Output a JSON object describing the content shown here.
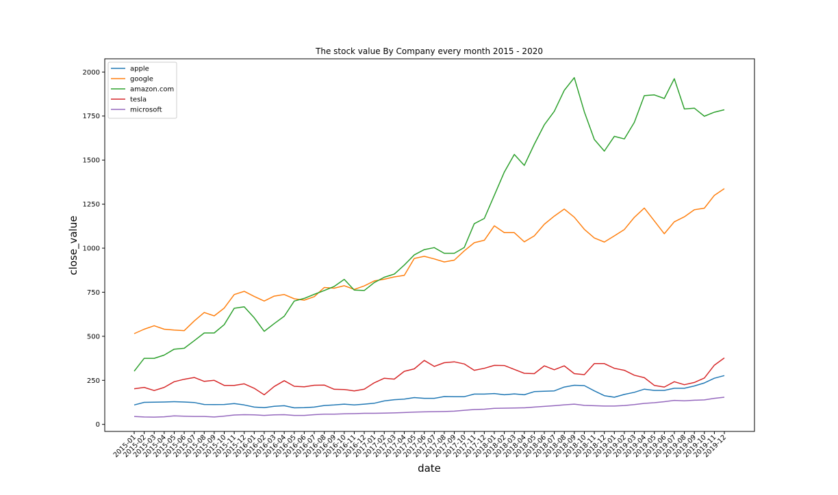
{
  "chart_data": {
    "type": "line",
    "title": "The stock value By Company every month 2015 - 2020",
    "xlabel": "date",
    "ylabel": "close_value",
    "ylim": [
      -40,
      2075
    ],
    "yticks": [
      0,
      250,
      500,
      750,
      1000,
      1250,
      1500,
      1750,
      2000
    ],
    "grid": false,
    "legend_position": "top-left",
    "categories": [
      "2015-01",
      "2015-02",
      "2015-03",
      "2015-04",
      "2015-05",
      "2015-06",
      "2015-07",
      "2015-08",
      "2015-09",
      "2015-10",
      "2015-11",
      "2015-12",
      "2016-01",
      "2016-02",
      "2016-03",
      "2016-04",
      "2016-05",
      "2016-06",
      "2016-07",
      "2016-08",
      "2016-09",
      "2016-10",
      "2016-11",
      "2016-12",
      "2017-01",
      "2017-02",
      "2017-03",
      "2017-04",
      "2017-05",
      "2017-06",
      "2017-07",
      "2017-08",
      "2017-09",
      "2017-10",
      "2017-11",
      "2017-12",
      "2018-01",
      "2018-02",
      "2018-03",
      "2018-04",
      "2018-05",
      "2018-06",
      "2018-07",
      "2018-08",
      "2018-09",
      "2018-10",
      "2018-11",
      "2018-12",
      "2019-01",
      "2019-02",
      "2019-03",
      "2019-04",
      "2019-05",
      "2019-06",
      "2019-07",
      "2019-08",
      "2019-09",
      "2019-10",
      "2019-11",
      "2019-12"
    ],
    "series": [
      {
        "name": "apple",
        "color": "#1f77b4",
        "values": [
          110,
          125,
          126,
          127,
          129,
          127,
          124,
          113,
          112,
          113,
          118,
          110,
          98,
          95,
          103,
          106,
          94,
          95,
          98,
          107,
          110,
          115,
          110,
          115,
          120,
          133,
          140,
          143,
          152,
          148,
          148,
          158,
          157,
          157,
          172,
          172,
          175,
          168,
          173,
          168,
          186,
          188,
          190,
          212,
          222,
          220,
          190,
          163,
          154,
          170,
          182,
          200,
          193,
          193,
          205,
          205,
          218,
          235,
          262,
          277
        ]
      },
      {
        "name": "google",
        "color": "#ff7f0e",
        "values": [
          515,
          540,
          560,
          540,
          535,
          532,
          587,
          635,
          616,
          660,
          737,
          755,
          726,
          700,
          728,
          737,
          713,
          705,
          725,
          777,
          773,
          787,
          766,
          786,
          814,
          824,
          837,
          846,
          942,
          954,
          939,
          922,
          932,
          985,
          1031,
          1045,
          1127,
          1088,
          1088,
          1036,
          1070,
          1136,
          1182,
          1222,
          1176,
          1107,
          1058,
          1035,
          1070,
          1106,
          1175,
          1228,
          1155,
          1082,
          1150,
          1178,
          1218,
          1227,
          1300,
          1338
        ]
      },
      {
        "name": "amazon.com",
        "color": "#2ca02c",
        "values": [
          302,
          375,
          375,
          393,
          427,
          432,
          475,
          519,
          519,
          566,
          659,
          667,
          605,
          528,
          572,
          614,
          700,
          715,
          738,
          760,
          783,
          823,
          762,
          760,
          805,
          835,
          853,
          904,
          962,
          992,
          1003,
          971,
          971,
          1004,
          1139,
          1169,
          1300,
          1432,
          1532,
          1470,
          1590,
          1700,
          1777,
          1896,
          1968,
          1774,
          1617,
          1551,
          1635,
          1620,
          1714,
          1866,
          1870,
          1850,
          1962,
          1790,
          1795,
          1749,
          1772,
          1786
        ]
      },
      {
        "name": "tesla",
        "color": "#d62728",
        "values": [
          202,
          210,
          192,
          210,
          242,
          256,
          266,
          244,
          250,
          221,
          221,
          230,
          205,
          168,
          215,
          248,
          216,
          213,
          222,
          223,
          199,
          198,
          190,
          200,
          236,
          262,
          257,
          301,
          315,
          363,
          329,
          350,
          355,
          343,
          307,
          318,
          335,
          334,
          312,
          290,
          288,
          332,
          310,
          332,
          288,
          282,
          345,
          345,
          318,
          307,
          279,
          265,
          221,
          212,
          242,
          225,
          238,
          263,
          336,
          377
        ]
      },
      {
        "name": "microsoft",
        "color": "#9467bd",
        "values": [
          45,
          42,
          41,
          43,
          48,
          46,
          45,
          45,
          42,
          47,
          53,
          55,
          54,
          51,
          54,
          55,
          51,
          51,
          55,
          58,
          58,
          60,
          61,
          63,
          63,
          64,
          65,
          67,
          70,
          71,
          72,
          73,
          75,
          80,
          84,
          86,
          91,
          92,
          93,
          94,
          98,
          102,
          106,
          111,
          115,
          108,
          106,
          104,
          104,
          107,
          112,
          119,
          123,
          129,
          136,
          134,
          137,
          139,
          148,
          154
        ]
      }
    ]
  }
}
